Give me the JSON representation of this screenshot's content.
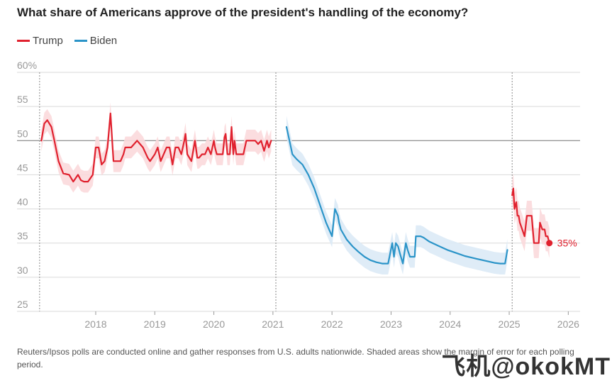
{
  "title": "What share of Americans approve of the president's handling of the economy?",
  "footnote": "Reuters/Ipsos polls are conducted online and gather responses from U.S. adults nationwide. Shaded areas show the margin of error for each polling period.",
  "watermark": "飞机@okokMT",
  "colors": {
    "trump": "#e0212e",
    "biden": "#2b94c8",
    "trump_band": "#fbd9db",
    "biden_band": "#dbeaf6",
    "grid": "#d9d9d9",
    "tick": "#999999"
  },
  "chart_data": {
    "type": "line",
    "title": "What share of Americans approve of the president's handling of the economy?",
    "xlabel": "",
    "ylabel": "",
    "ylim": [
      25,
      60
    ],
    "xlim": [
      2017.1,
      2026.2
    ],
    "yticks": [
      25,
      30,
      35,
      40,
      45,
      50,
      55,
      60
    ],
    "ytick_labels": [
      "25",
      "30",
      "35",
      "40",
      "45",
      "50",
      "55",
      "60%"
    ],
    "xticks": [
      2018,
      2019,
      2020,
      2021,
      2022,
      2023,
      2024,
      2025,
      2026
    ],
    "xtick_labels": [
      "2018",
      "2019",
      "2020",
      "2021",
      "2022",
      "2023",
      "2024",
      "2025",
      "2026"
    ],
    "reference_line": 50,
    "term_dividers": [
      2017.05,
      2021.05,
      2025.05
    ],
    "end_label": "35%",
    "series": [
      {
        "name": "Trump",
        "color": "#e0212e",
        "margin": 1.6,
        "x": [
          2017.08,
          2017.13,
          2017.18,
          2017.25,
          2017.3,
          2017.37,
          2017.45,
          2017.55,
          2017.62,
          2017.7,
          2017.75,
          2017.8,
          2017.87,
          2017.95,
          2018.0,
          2018.05,
          2018.1,
          2018.15,
          2018.2,
          2018.25,
          2018.3,
          2018.37,
          2018.42,
          2018.47,
          2018.5,
          2018.6,
          2018.7,
          2018.8,
          2018.88,
          2018.92,
          2019.0,
          2019.05,
          2019.1,
          2019.2,
          2019.25,
          2019.3,
          2019.35,
          2019.4,
          2019.45,
          2019.5,
          2019.52,
          2019.55,
          2019.62,
          2019.68,
          2019.72,
          2019.75,
          2019.8,
          2019.85,
          2019.9,
          2019.95,
          2020.0,
          2020.02,
          2020.05,
          2020.1,
          2020.15,
          2020.18,
          2020.2,
          2020.23,
          2020.27,
          2020.3,
          2020.33,
          2020.35,
          2020.38,
          2020.42,
          2020.45,
          2020.5,
          2020.55,
          2020.6,
          2020.65,
          2020.7,
          2020.75,
          2020.8,
          2020.85,
          2020.9,
          2020.93,
          2020.97
        ],
        "y": [
          50,
          52.5,
          53,
          52,
          50,
          47,
          45.2,
          45,
          44,
          45,
          44.2,
          44,
          44,
          45,
          49,
          49,
          46.5,
          47,
          49,
          54,
          47,
          47,
          47,
          48,
          49,
          49,
          50,
          49,
          47.5,
          47,
          48,
          49,
          47,
          49,
          49,
          46.5,
          49,
          49,
          48,
          50,
          51,
          48,
          47,
          50,
          47.5,
          47.5,
          48,
          48,
          49,
          48,
          50,
          49,
          48,
          48,
          48,
          50.5,
          51,
          48,
          48,
          52,
          48,
          50,
          48,
          48,
          48,
          48,
          50,
          50,
          50,
          50,
          49.5,
          50,
          48.5,
          50,
          49,
          50
        ]
      },
      {
        "name": "Biden",
        "color": "#2b94c8",
        "margin": 1.6,
        "x": [
          2021.23,
          2021.28,
          2021.33,
          2021.4,
          2021.5,
          2021.6,
          2021.7,
          2021.8,
          2021.9,
          2022.0,
          2022.05,
          2022.1,
          2022.12,
          2022.15,
          2022.25,
          2022.35,
          2022.45,
          2022.55,
          2022.65,
          2022.75,
          2022.85,
          2022.95,
          2023.02,
          2023.05,
          2023.08,
          2023.12,
          2023.15,
          2023.2,
          2023.25,
          2023.28,
          2023.32,
          2023.36,
          2023.4,
          2023.42,
          2023.45,
          2023.5,
          2023.55,
          2023.6,
          2023.65,
          2023.75,
          2023.85,
          2023.95,
          2024.05,
          2024.15,
          2024.25,
          2024.35,
          2024.45,
          2024.55,
          2024.65,
          2024.75,
          2024.85,
          2024.93,
          2024.97
        ],
        "y": [
          52,
          50,
          48,
          47.3,
          46.5,
          45,
          43,
          40.5,
          38,
          36,
          40,
          39,
          38,
          37,
          35.5,
          34.5,
          33.7,
          33,
          32.5,
          32.2,
          32,
          32,
          35,
          33,
          35,
          34.5,
          33.5,
          32,
          35,
          34,
          33,
          33,
          33,
          36,
          36,
          36,
          35.8,
          35.5,
          35.2,
          34.8,
          34.4,
          34,
          33.7,
          33.4,
          33.1,
          32.9,
          32.7,
          32.5,
          32.3,
          32.1,
          32,
          32,
          34
        ]
      },
      {
        "name": "Trump",
        "color": "#e0212e",
        "margin": 2.2,
        "x": [
          2025.05,
          2025.07,
          2025.09,
          2025.12,
          2025.14,
          2025.16,
          2025.18,
          2025.22,
          2025.26,
          2025.3,
          2025.34,
          2025.38,
          2025.42,
          2025.46,
          2025.5,
          2025.52,
          2025.56,
          2025.6,
          2025.62,
          2025.65,
          2025.68
        ],
        "y": [
          42,
          43,
          40,
          41,
          39,
          39,
          38,
          37,
          36,
          39,
          39,
          39,
          35,
          35,
          35,
          38,
          37,
          37,
          36,
          36,
          35
        ]
      }
    ]
  }
}
